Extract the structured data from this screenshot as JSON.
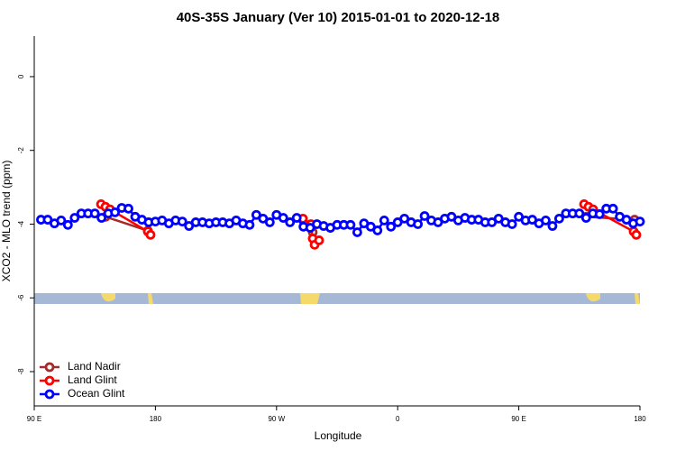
{
  "chart_data": {
    "type": "scatter",
    "title": "40S-35S January (Ver 10)   2015-01-01 to 2020-12-18",
    "xlabel": "Longitude",
    "ylabel": "XCO2 - MLO trend (ppm)",
    "xlim": [
      90,
      540
    ],
    "ylim": [
      -8.93,
      1.1
    ],
    "xticks": [
      {
        "value": 90,
        "label": "90 E"
      },
      {
        "value": 180,
        "label": "180"
      },
      {
        "value": 270,
        "label": "90 W"
      },
      {
        "value": 360,
        "label": "0"
      },
      {
        "value": 450,
        "label": "90 E"
      },
      {
        "value": 540,
        "label": "180"
      }
    ],
    "yticks": [
      0,
      -2,
      -4,
      -6,
      -8
    ],
    "legend": "bottom-left",
    "series": [
      {
        "name": "Land Nadir",
        "color": "#a52a2a",
        "x": [
          143,
          174.4,
          230,
          296.9,
          400,
          500,
          536
        ],
        "values": [
          -3.8,
          -4.18,
          null,
          -4.22,
          null,
          -3.8,
          -3.88
        ]
      },
      {
        "name": "Land Glint",
        "color": "#ff0000",
        "x": [
          139.6,
          142.9,
          146.3,
          174.4,
          176.4,
          230,
          289.6,
          295.6,
          296.9,
          298.3,
          301.6,
          400,
          498.5,
          501.8,
          505.2,
          535.3,
          537.3
        ],
        "values": [
          -3.46,
          -3.53,
          -3.6,
          -4.2,
          -4.29,
          null,
          -3.85,
          -4.0,
          -4.39,
          -4.56,
          -4.44,
          null,
          -3.46,
          -3.53,
          -3.6,
          -4.2,
          -4.29
        ]
      },
      {
        "name": "Ocean Glint",
        "color": "#0000ff",
        "x": [
          95,
          100,
          105,
          110,
          115,
          120,
          125,
          130,
          135,
          140,
          145,
          150,
          155,
          160,
          165,
          170,
          175,
          180,
          185,
          190,
          195,
          200,
          205,
          210,
          215,
          220,
          225,
          230,
          235,
          240,
          245,
          250,
          255,
          260,
          265,
          270,
          275,
          280,
          285,
          290,
          295,
          300,
          305,
          310,
          315,
          320,
          325,
          330,
          335,
          340,
          345,
          350,
          355,
          360,
          365,
          370,
          375,
          380,
          385,
          390,
          395,
          400,
          405,
          410,
          415,
          420,
          425,
          430,
          435,
          440,
          445,
          450,
          455,
          460,
          465,
          470,
          475,
          480,
          485,
          490,
          495,
          500,
          505,
          510,
          515,
          520,
          525,
          530,
          535,
          540
        ],
        "values": [
          -3.88,
          -3.88,
          -3.98,
          -3.9,
          -4.02,
          -3.83,
          -3.71,
          -3.71,
          -3.71,
          -3.83,
          -3.71,
          -3.68,
          -3.56,
          -3.58,
          -3.8,
          -3.88,
          -3.95,
          -3.93,
          -3.9,
          -3.98,
          -3.9,
          -3.93,
          -4.05,
          -3.95,
          -3.95,
          -3.98,
          -3.95,
          -3.95,
          -3.98,
          -3.9,
          -3.98,
          -4.02,
          -3.75,
          -3.85,
          -3.95,
          -3.75,
          -3.83,
          -3.95,
          -3.83,
          -4.07,
          -4.1,
          -4.0,
          -4.05,
          -4.1,
          -4.02,
          -4.02,
          -4.02,
          -4.22,
          -3.98,
          -4.07,
          -4.17,
          -3.9,
          -4.07,
          -3.95,
          -3.85,
          -3.95,
          -4.0,
          -3.78,
          -3.9,
          -3.95,
          -3.85,
          -3.8,
          -3.9,
          -3.83,
          -3.88,
          -3.88,
          -3.95,
          -3.95,
          -3.85,
          -3.95,
          -4.0,
          -3.8,
          -3.9,
          -3.88,
          -3.98,
          -3.9,
          -4.05,
          -3.85,
          -3.71,
          -3.71,
          -3.71,
          -3.83,
          -3.71,
          -3.73,
          -3.58,
          -3.58,
          -3.8,
          -3.88,
          -3.98,
          -3.93
        ]
      }
    ]
  }
}
